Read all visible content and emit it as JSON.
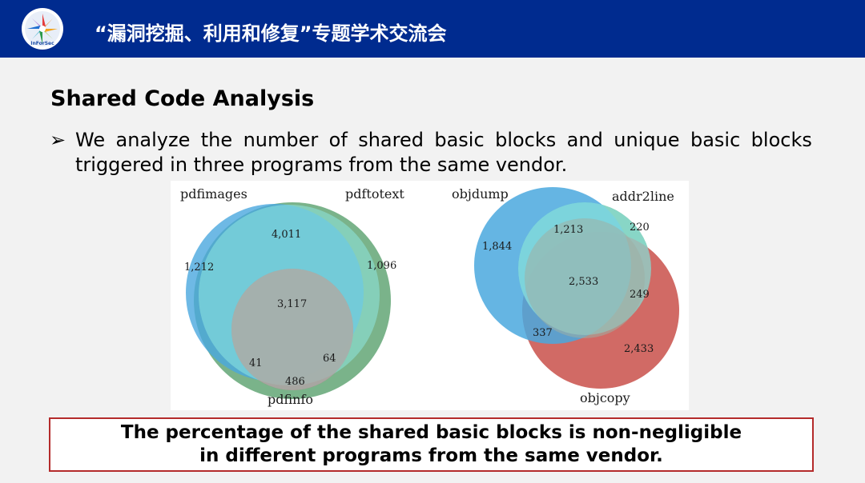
{
  "header": {
    "title": "“漏洞挖掘、利用和修复”专题学术交流会",
    "logo_text": "InForSec"
  },
  "slide": {
    "title": "Shared Code Analysis",
    "bullet_symbol": "➢",
    "bullet_line1_words": [
      "We",
      "analyze",
      "the",
      "number",
      "of",
      "shared",
      "basic",
      "blocks",
      "and",
      "unique",
      "basic",
      "blocks"
    ],
    "bullet_line2": "triggered in three programs from the same vendor.",
    "conclusion_line1": "The percentage of the shared basic blocks is non-negligible",
    "conclusion_line2": "in different programs from the same vendor."
  },
  "venn_left": {
    "set_a": "pdfimages",
    "set_b": "pdftotext",
    "set_c": "pdfinfo",
    "only_a": "1,212",
    "only_b": "1,096",
    "a_and_b": "4,011",
    "all_three": "3,117",
    "a_and_c": "41",
    "b_and_c": "64",
    "only_c": "486"
  },
  "venn_right": {
    "set_a": "objdump",
    "set_b": "addr2line",
    "set_c": "objcopy",
    "only_a": "1,844",
    "a_and_b": "1,213",
    "only_b": "220",
    "all_three": "2,533",
    "b_and_c": "249",
    "a_and_c": "337",
    "only_c": "2,433"
  },
  "colors": {
    "header_bg": "#002b8f",
    "blue": "#4aa8de",
    "green": "#4e9a63",
    "red": "#c9504a",
    "border_red": "#b42b2b"
  }
}
